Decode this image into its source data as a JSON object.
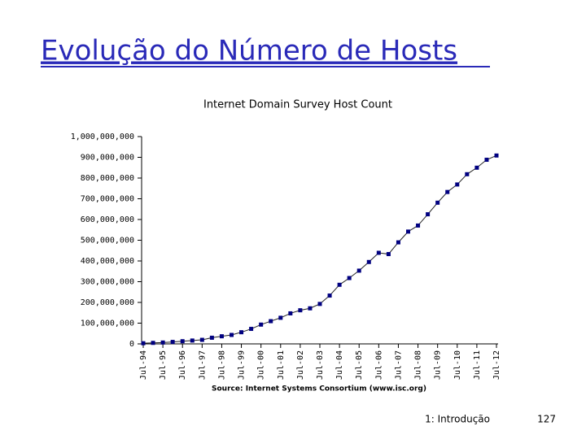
{
  "header": {
    "title": "Evolução do Número de Hosts"
  },
  "chart_data": {
    "type": "line",
    "title": "Internet Domain Survey Host Count",
    "source": "Source: Internet Systems Consortium (www.isc.org)",
    "categories": [
      "Jul-94",
      null,
      "Jul-95",
      null,
      "Jul-96",
      null,
      "Jul-97",
      null,
      "Jul-98",
      null,
      "Jul-99",
      null,
      "Jul-00",
      null,
      "Jul-01",
      null,
      "Jul-02",
      null,
      "Jul-03",
      null,
      "Jul-04",
      null,
      "Jul-05",
      null,
      "Jul-06",
      null,
      "Jul-07",
      null,
      "Jul-08",
      null,
      "Jul-09",
      null,
      "Jul-10",
      null,
      "Jul-11",
      null,
      "Jul-12"
    ],
    "series": [
      {
        "name": "Host Count",
        "color": "#000080",
        "values": [
          3200000,
          4900000,
          6600000,
          9500000,
          12900000,
          16100000,
          19500000,
          29700000,
          36700000,
          43200000,
          56200000,
          72400000,
          93000000,
          109600000,
          125900000,
          147300000,
          162100000,
          171600000,
          192700000,
          233100000,
          285100000,
          317600000,
          353300000,
          395000000,
          439300000,
          433200000,
          489800000,
          541700000,
          570900000,
          625200000,
          681100000,
          732700000,
          768900000,
          818400000,
          849900000,
          888200000,
          908600000
        ]
      }
    ],
    "ylim": [
      0,
      1000000000
    ],
    "yticks": [
      0,
      {
        "value": 100000000,
        "label": "100,000,000"
      },
      {
        "value": 200000000,
        "label": "200,000,000"
      },
      {
        "value": 300000000,
        "label": "300,000,000"
      },
      {
        "value": 400000000,
        "label": "400,000,000"
      },
      {
        "value": 500000000,
        "label": "500,000,000"
      },
      {
        "value": 600000000,
        "label": "600,000,000"
      },
      {
        "value": 700000000,
        "label": "700,000,000"
      },
      {
        "value": 800000000,
        "label": "800,000,000"
      },
      {
        "value": 900000000,
        "label": "900,000,000"
      },
      {
        "value": 1000000000,
        "label": "1,000,000,000"
      }
    ],
    "grid": false
  },
  "footer": {
    "section": "1: Introdução",
    "page": "127"
  }
}
